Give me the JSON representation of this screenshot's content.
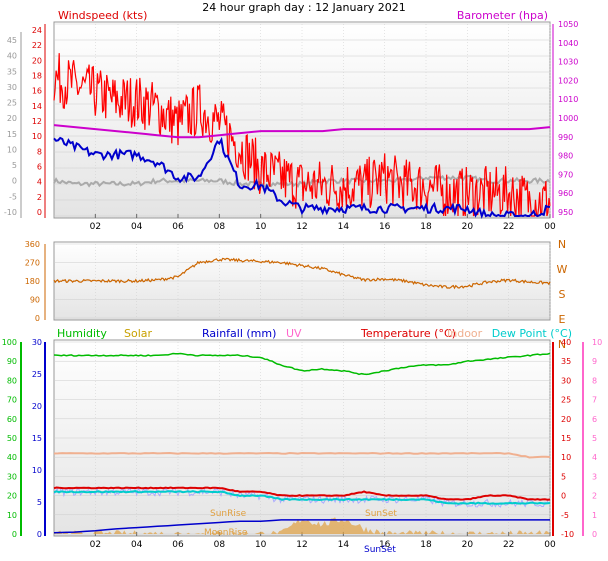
{
  "title": "24 hour graph day : 12 January 2021",
  "x_ticks": [
    "02",
    "04",
    "06",
    "08",
    "10",
    "12",
    "14",
    "16",
    "18",
    "20",
    "22",
    "00"
  ],
  "colors": {
    "wind_avg": "#0000cc",
    "wind_gust": "#ff0000",
    "wind_dir": "#cc6600",
    "barometer": "#cc00cc",
    "humidity": "#00bb00",
    "solar": "#e0a040",
    "rainfall": "#0000cc",
    "uv": "#ff66cc",
    "temperature": "#dd0000",
    "indoor": "#f0b090",
    "dewpoint": "#00cccc",
    "windchill": "#aaaaff"
  },
  "chart_data": [
    {
      "type": "line",
      "title": "",
      "x": [
        0,
        1,
        2,
        3,
        4,
        5,
        6,
        7,
        8,
        9,
        10,
        11,
        12,
        13,
        14,
        15,
        16,
        17,
        18,
        19,
        20,
        21,
        22,
        23,
        24
      ],
      "x_ticks": [
        "02",
        "04",
        "06",
        "08",
        "10",
        "12",
        "14",
        "16",
        "18",
        "20",
        "22",
        "00"
      ],
      "left_axis": {
        "label": "Windspeed (kts)",
        "ticks": [
          "0",
          "2",
          "4",
          "6",
          "8",
          "10",
          "12",
          "14",
          "16",
          "18",
          "20",
          "22",
          "24"
        ],
        "range": [
          0,
          25
        ]
      },
      "outer_left_axis": {
        "ticks": [
          "-10",
          "-5",
          "0",
          "5",
          "10",
          "15",
          "20",
          "25",
          "30",
          "35",
          "40",
          "45"
        ],
        "range": [
          -10,
          45
        ]
      },
      "right_axis": {
        "label": "Barometer (hpa)",
        "ticks": [
          "950",
          "960",
          "970",
          "980",
          "990",
          "1000",
          "1010",
          "1020",
          "1030",
          "1040",
          "1050"
        ],
        "range": [
          955,
          1050
        ]
      },
      "series": [
        {
          "name": "Windspeed (kts) gust",
          "axis": "left",
          "values": [
            18,
            17,
            16,
            15,
            15,
            14,
            12,
            14,
            12,
            9,
            6,
            5,
            4,
            4,
            4,
            4,
            5,
            4,
            4,
            3,
            3,
            3,
            3,
            2,
            2
          ]
        },
        {
          "name": "Windspeed (kts) average",
          "axis": "left",
          "values": [
            10,
            9,
            8,
            8,
            8,
            7,
            5,
            5,
            10,
            4,
            4,
            2,
            1,
            1,
            1,
            1,
            1,
            1,
            1,
            1,
            1,
            0,
            0,
            0,
            1
          ]
        },
        {
          "name": "Temperature (outer scale)",
          "axis": "outer_left",
          "values": [
            0,
            -1,
            -1,
            -1,
            -1,
            0,
            0,
            0,
            0,
            -1,
            -1,
            -1,
            -1,
            0,
            0,
            0,
            0,
            0,
            1,
            1,
            1,
            0,
            0,
            0,
            0
          ]
        },
        {
          "name": "Barometer (hpa)",
          "axis": "right",
          "values": [
            1000,
            999,
            998,
            997,
            996,
            995,
            994,
            994,
            995,
            996,
            997,
            997,
            997,
            997,
            998,
            998,
            998,
            998,
            998,
            998,
            998,
            998,
            998,
            998,
            999
          ]
        }
      ]
    },
    {
      "type": "line",
      "title": "",
      "x": [
        0,
        1,
        2,
        3,
        4,
        5,
        6,
        7,
        8,
        9,
        10,
        11,
        12,
        13,
        14,
        15,
        16,
        17,
        18,
        19,
        20,
        21,
        22,
        23,
        24
      ],
      "left_axis": {
        "ticks": [
          "0",
          "90",
          "180",
          "270",
          "360"
        ],
        "range": [
          0,
          360
        ]
      },
      "right_axis": {
        "ticks": [
          "N",
          "E",
          "S",
          "W",
          "N"
        ]
      },
      "series": [
        {
          "name": "Wind direction",
          "values": [
            180,
            180,
            180,
            180,
            180,
            185,
            200,
            270,
            285,
            280,
            275,
            270,
            255,
            240,
            210,
            185,
            190,
            180,
            160,
            150,
            155,
            175,
            185,
            175,
            170
          ]
        }
      ]
    },
    {
      "type": "line",
      "title": "",
      "x": [
        0,
        1,
        2,
        3,
        4,
        5,
        6,
        7,
        8,
        9,
        10,
        11,
        12,
        13,
        14,
        15,
        16,
        17,
        18,
        19,
        20,
        21,
        22,
        23,
        24
      ],
      "legend": [
        "Humidity",
        "Solar",
        "Rainfall (mm)",
        "UV",
        "Temperature (°C)",
        "Indoor",
        "Dew Point (°C)"
      ],
      "outer_left_axis": {
        "ticks": [
          "0",
          "10",
          "20",
          "30",
          "40",
          "50",
          "60",
          "70",
          "80",
          "90",
          "100"
        ],
        "range": [
          0,
          100
        ]
      },
      "left_axis": {
        "ticks": [
          "0",
          "5",
          "10",
          "15",
          "20",
          "25",
          "30"
        ],
        "range": [
          0,
          30
        ]
      },
      "right_axis": {
        "ticks": [
          "-10",
          "-5",
          "0",
          "5",
          "10",
          "15",
          "20",
          "25",
          "30",
          "35",
          "40"
        ],
        "range": [
          -10,
          40
        ]
      },
      "outer_right_axis": {
        "ticks": [
          "0",
          "1",
          "2",
          "3",
          "4",
          "5",
          "6",
          "7",
          "8",
          "9",
          "10"
        ],
        "range": [
          0,
          10
        ]
      },
      "annotations": [
        "SunRise",
        "SunSet",
        "MoonRise",
        "SunSet"
      ],
      "series": [
        {
          "name": "Humidity",
          "axis": "outer_left",
          "values": [
            93,
            93,
            93,
            93,
            93,
            93,
            94,
            93,
            93,
            93,
            92,
            88,
            85,
            86,
            85,
            83,
            85,
            87,
            88,
            88,
            90,
            91,
            92,
            93,
            94
          ]
        },
        {
          "name": "Temperature (°C)",
          "axis": "right",
          "values": [
            2,
            2,
            2,
            2,
            2,
            2,
            2,
            2,
            2,
            1,
            1,
            0,
            0,
            0,
            0,
            1,
            0,
            0,
            0,
            -1,
            -1,
            0,
            0,
            -1,
            -1
          ]
        },
        {
          "name": "Indoor",
          "axis": "right",
          "values": [
            11,
            11,
            11,
            11,
            11,
            11,
            11,
            11,
            11,
            11,
            11,
            11,
            11,
            11,
            11,
            11,
            11,
            11,
            11,
            11,
            11,
            11,
            11,
            10,
            10
          ]
        },
        {
          "name": "Dew Point (°C)",
          "axis": "right",
          "values": [
            1,
            1,
            1,
            1,
            1,
            1,
            1,
            1,
            1,
            0,
            0,
            -1,
            -1,
            -1,
            -1,
            -1,
            -1,
            -1,
            -1,
            -2,
            -2,
            -2,
            -2,
            -2,
            -2
          ]
        },
        {
          "name": "Rainfall (mm)",
          "axis": "left",
          "values": [
            0.2,
            0.3,
            0.5,
            0.8,
            1,
            1.2,
            1.4,
            1.6,
            1.8,
            2,
            2,
            2.2,
            2.2,
            2.2,
            2.2,
            2.2,
            2.2,
            2.2,
            2.2,
            2.2,
            2.2,
            2.2,
            2.2,
            2.2,
            2.2
          ]
        },
        {
          "name": "Solar",
          "axis": "outer_right",
          "values": [
            0,
            0,
            0,
            0,
            0,
            0,
            0,
            0,
            0,
            0,
            0,
            0,
            0.8,
            0.5,
            0.8,
            0.3,
            0,
            0,
            0,
            0,
            0,
            0,
            0,
            0,
            0
          ]
        }
      ]
    }
  ],
  "panel1": {
    "left_label": "Windspeed (kts)",
    "right_label": "Barometer (hpa)"
  },
  "panel3": {
    "humidity": "Humidity",
    "solar": "Solar",
    "rainfall": "Rainfall (mm)",
    "uv": "UV",
    "temperature": "Temperature (°C)",
    "indoor": "Indoor",
    "dewpoint": "Dew Point (°C)",
    "sunrise": "SunRise",
    "sunset": "SunSet",
    "moonrise": "MoonRise",
    "sunset_bottom": "SunSet"
  }
}
